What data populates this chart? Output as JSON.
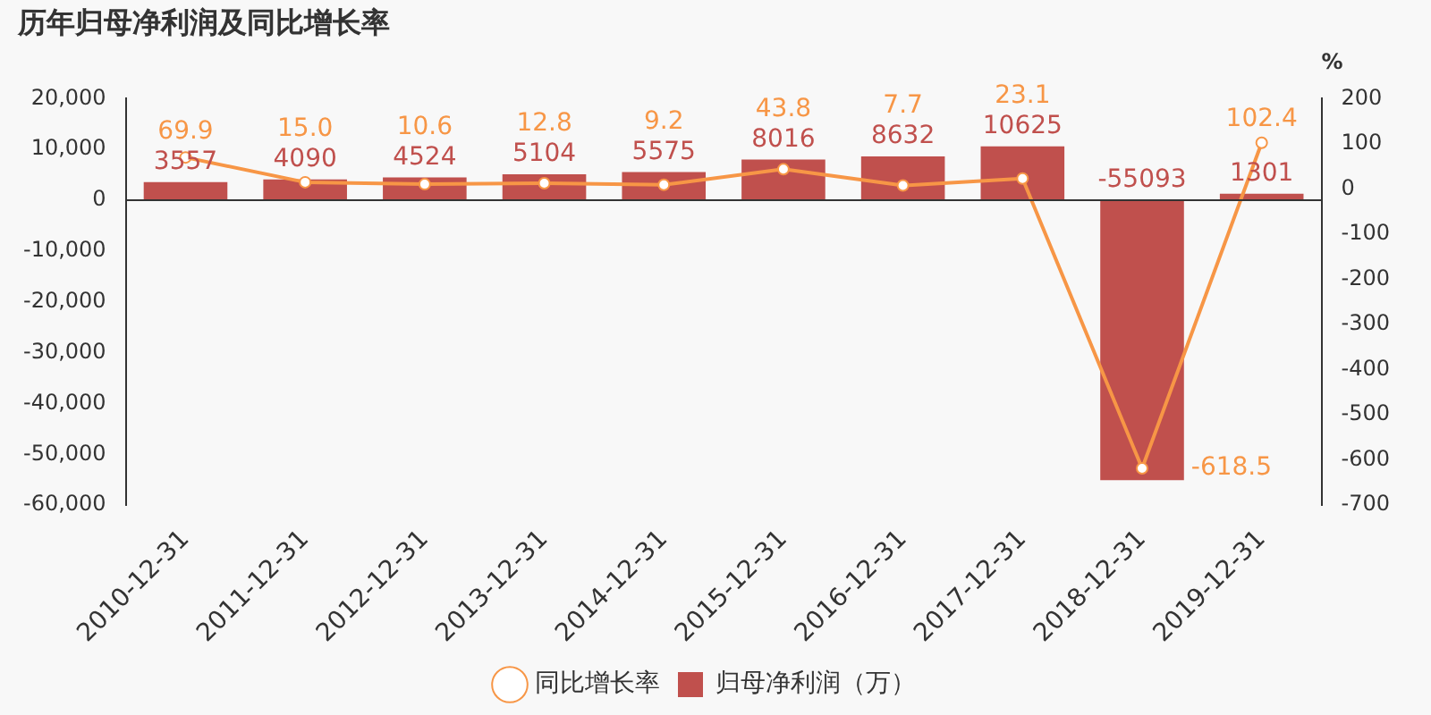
{
  "chart_data": {
    "type": "bar",
    "title": "历年归母净利润及同比增长率",
    "y2label": "%",
    "categories": [
      "2010-12-31",
      "2011-12-31",
      "2012-12-31",
      "2013-12-31",
      "2014-12-31",
      "2015-12-31",
      "2016-12-31",
      "2017-12-31",
      "2018-12-31",
      "2019-12-31"
    ],
    "series": [
      {
        "name": "归母净利润（万）",
        "color": "#c0504d",
        "values": [
          3557,
          4090,
          4524,
          5104,
          5575,
          8016,
          8632,
          10625,
          -55093,
          1301
        ]
      },
      {
        "name": "同比增长率",
        "type": "line",
        "axis": "y2",
        "color": "#f79646",
        "marker": "circle",
        "values": [
          69.9,
          15.0,
          10.6,
          12.8,
          9.2,
          43.8,
          7.7,
          23.1,
          -618.5,
          102.4
        ],
        "value_labels": [
          "69.9",
          "15.0",
          "10.6",
          "12.8",
          "9.2",
          "43.8",
          "7.7",
          "23.1",
          "-618.5",
          "102.4"
        ]
      }
    ],
    "data_labels": true,
    "legend": "bottom",
    "ylim": [
      -60000,
      20000
    ],
    "yticks": [
      {
        "value": -60000,
        "label": "-60,000"
      },
      {
        "value": -50000,
        "label": "-50,000"
      },
      {
        "value": -40000,
        "label": "-40,000"
      },
      {
        "value": -30000,
        "label": "-30,000"
      },
      {
        "value": -20000,
        "label": "-20,000"
      },
      {
        "value": -10000,
        "label": "-10,000"
      },
      0,
      {
        "value": 10000,
        "label": "10,000"
      },
      {
        "value": 20000,
        "label": "20,000"
      }
    ],
    "y2lim": [
      -700,
      200
    ],
    "y2ticks": [
      -700,
      -600,
      -500,
      -400,
      -300,
      -200,
      -100,
      0,
      100,
      200
    ]
  }
}
